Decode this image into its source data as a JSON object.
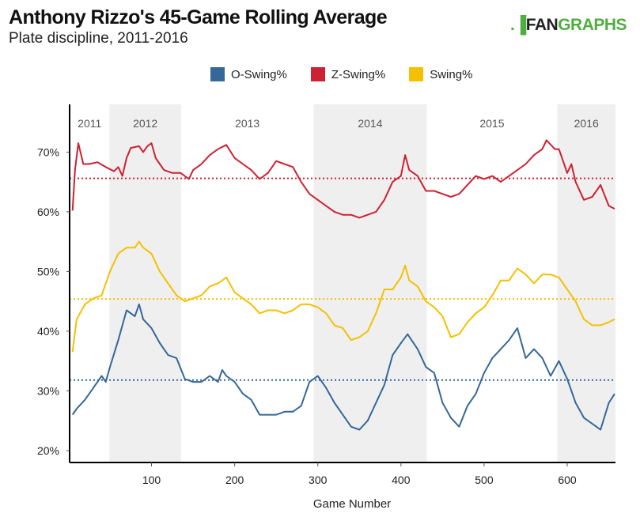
{
  "title": "Anthony Rizzo's 45-Game Rolling Average",
  "subtitle": "Plate discipline, 2011-2016",
  "logo": {
    "prefix": "FAN",
    "suffix": "GRAPHS"
  },
  "chart_data": {
    "type": "line",
    "xlabel": "Game Number",
    "ylabel": "",
    "xlim": [
      1.5,
      658
    ],
    "ylim": [
      18,
      78
    ],
    "x_ticks": [
      100,
      200,
      300,
      400,
      500,
      600
    ],
    "y_ticks": [
      20,
      30,
      40,
      50,
      60,
      70
    ],
    "y_tick_labels": [
      "20%",
      "30%",
      "40%",
      "50%",
      "60%",
      "70%"
    ],
    "legend_position": "top-center",
    "grid": false,
    "seasons": [
      {
        "label": "2011",
        "start": 1.5,
        "end": 49.5,
        "shaded": false
      },
      {
        "label": "2012",
        "start": 49.5,
        "end": 135.5,
        "shaded": true
      },
      {
        "label": "2013",
        "start": 135.5,
        "end": 295,
        "shaded": false
      },
      {
        "label": "2014",
        "start": 295,
        "end": 431,
        "shaded": true
      },
      {
        "label": "2015",
        "start": 431,
        "end": 588,
        "shaded": false
      },
      {
        "label": "2016",
        "start": 588,
        "end": 658,
        "shaded": true
      }
    ],
    "series": [
      {
        "name": "O-Swing%",
        "color": "#356799",
        "average": 31.8,
        "x": [
          5,
          10,
          20,
          30,
          40,
          45,
          50,
          60,
          70,
          80,
          85,
          90,
          100,
          110,
          120,
          130,
          140,
          150,
          160,
          170,
          180,
          185,
          190,
          200,
          210,
          220,
          230,
          240,
          250,
          260,
          270,
          280,
          290,
          300,
          310,
          320,
          330,
          340,
          350,
          360,
          370,
          380,
          390,
          400,
          408,
          420,
          430,
          440,
          450,
          460,
          470,
          480,
          490,
          500,
          510,
          520,
          530,
          540,
          550,
          560,
          570,
          580,
          590,
          600,
          610,
          620,
          630,
          640,
          650,
          657
        ],
        "y": [
          26,
          27,
          28.5,
          30.5,
          32.5,
          31.5,
          34,
          38.5,
          43.5,
          42.5,
          44.5,
          42,
          40.5,
          38,
          36,
          35.5,
          32,
          31.5,
          31.5,
          32.5,
          31.5,
          33.5,
          32.5,
          31.5,
          29.5,
          28.5,
          26,
          26,
          26,
          26.5,
          26.5,
          27.5,
          31.5,
          32.5,
          30.5,
          28,
          26,
          24,
          23.5,
          25,
          28,
          31,
          36,
          38,
          39.5,
          37,
          34,
          33,
          28,
          25.5,
          24,
          27.5,
          29.5,
          33,
          35.5,
          37,
          38.5,
          40.5,
          35.5,
          37,
          35.5,
          32.5,
          35,
          32,
          28,
          25.5,
          24.5,
          23.5,
          28,
          29.5
        ]
      },
      {
        "name": "Z-Swing%",
        "color": "#cc2233",
        "average": 65.6,
        "x": [
          5,
          8,
          12,
          18,
          25,
          35,
          45,
          55,
          60,
          65,
          70,
          75,
          85,
          90,
          95,
          100,
          105,
          110,
          115,
          125,
          135,
          145,
          150,
          160,
          170,
          180,
          190,
          200,
          210,
          220,
          230,
          240,
          250,
          260,
          270,
          280,
          290,
          300,
          310,
          320,
          330,
          340,
          350,
          360,
          370,
          380,
          390,
          400,
          405,
          410,
          420,
          430,
          440,
          450,
          460,
          470,
          480,
          490,
          500,
          510,
          520,
          530,
          540,
          550,
          560,
          570,
          575,
          585,
          590,
          600,
          605,
          610,
          620,
          630,
          640,
          650,
          657
        ],
        "y": [
          60.2,
          67,
          71.5,
          68,
          68,
          68.3,
          67.5,
          66.8,
          67.5,
          66,
          69,
          70.7,
          71,
          70,
          71,
          71.5,
          69,
          68,
          67,
          66.5,
          66.5,
          65.5,
          67,
          68,
          69.5,
          70.5,
          71.2,
          69,
          68,
          67,
          65.5,
          66.5,
          68.5,
          68,
          67.5,
          65,
          63,
          62,
          61,
          60,
          59.5,
          59.5,
          59,
          59.5,
          60,
          62,
          65,
          66,
          69.5,
          67,
          66,
          63.5,
          63.5,
          63,
          62.5,
          63,
          64.5,
          66,
          65.5,
          66,
          65,
          66,
          67,
          68,
          69.5,
          70.5,
          72,
          70.5,
          70.5,
          66.5,
          68,
          65,
          62,
          62.5,
          64.5,
          61,
          60.5
        ]
      },
      {
        "name": "Swing%",
        "color": "#f5c000",
        "average": 45.4,
        "x": [
          5,
          10,
          20,
          30,
          40,
          50,
          60,
          70,
          80,
          85,
          90,
          100,
          110,
          120,
          130,
          140,
          150,
          160,
          170,
          180,
          190,
          200,
          210,
          220,
          230,
          240,
          250,
          260,
          270,
          280,
          290,
          300,
          310,
          320,
          330,
          340,
          350,
          360,
          370,
          380,
          390,
          400,
          405,
          410,
          420,
          430,
          440,
          450,
          460,
          470,
          480,
          490,
          500,
          510,
          520,
          530,
          540,
          550,
          560,
          570,
          580,
          590,
          600,
          610,
          620,
          630,
          640,
          650,
          657
        ],
        "y": [
          36.5,
          42,
          44.5,
          45.5,
          46,
          50,
          53,
          54,
          54,
          55,
          54,
          53,
          50,
          48,
          46,
          45,
          45.5,
          46,
          47.5,
          48,
          49,
          46.5,
          45.5,
          44.5,
          43,
          43.5,
          43.5,
          43,
          43.5,
          44.5,
          44.5,
          44,
          43,
          41,
          40.5,
          38.5,
          39,
          40,
          43,
          47,
          47,
          49,
          51,
          48.5,
          47.5,
          45,
          44,
          42.5,
          39,
          39.5,
          41.5,
          43,
          44,
          46,
          48.5,
          48.5,
          50.5,
          49.5,
          48,
          49.5,
          49.5,
          49,
          47,
          45,
          42,
          41,
          41,
          41.5,
          42
        ]
      }
    ]
  }
}
